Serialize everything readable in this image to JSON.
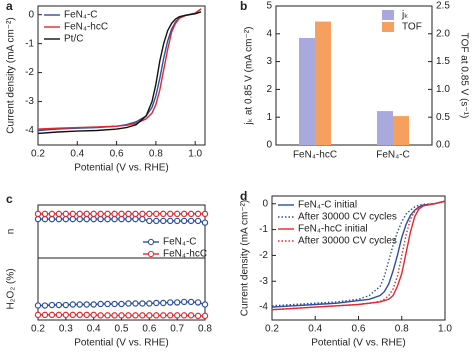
{
  "chart_data": [
    {
      "type": "line",
      "panel_label": "a",
      "x_label": "Potential (V vs. RHE)",
      "y_label": "Current density (mA cm⁻²)",
      "x": [
        0.2,
        0.3,
        0.4,
        0.5,
        0.6,
        0.65,
        0.7,
        0.75,
        0.78,
        0.8,
        0.82,
        0.84,
        0.86,
        0.88,
        0.9,
        0.92,
        0.95,
        1.0,
        1.03
      ],
      "series": [
        {
          "name": "FeN₄-C",
          "color": "#2b4fa0",
          "values": [
            -4.0,
            -3.95,
            -3.92,
            -3.9,
            -3.85,
            -3.8,
            -3.7,
            -3.5,
            -3.2,
            -2.8,
            -2.2,
            -1.5,
            -0.9,
            -0.5,
            -0.25,
            -0.1,
            -0.02,
            0.05,
            0.2
          ]
        },
        {
          "name": "FeN₄-hcC",
          "color": "#e0282e",
          "values": [
            -3.95,
            -3.92,
            -3.9,
            -3.88,
            -3.85,
            -3.82,
            -3.75,
            -3.6,
            -3.4,
            -3.1,
            -2.6,
            -1.9,
            -1.2,
            -0.6,
            -0.3,
            -0.12,
            -0.03,
            0.05,
            0.2
          ]
        },
        {
          "name": "Pt/C",
          "color": "#111111",
          "values": [
            -4.1,
            -4.05,
            -4.02,
            -4.0,
            -3.95,
            -3.9,
            -3.8,
            -3.5,
            -3.0,
            -2.4,
            -1.6,
            -1.0,
            -0.55,
            -0.3,
            -0.15,
            -0.07,
            -0.02,
            0.03,
            0.1
          ]
        }
      ],
      "xlim": [
        0.2,
        1.05
      ],
      "xticks": [
        0.2,
        0.4,
        0.6,
        0.8,
        {
          "value": 1,
          "label": "1.0"
        }
      ],
      "ylim": [
        -4.5,
        0.3
      ],
      "yticks": [
        0,
        -1,
        -2,
        -3,
        -4
      ],
      "legend": "upper left"
    },
    {
      "type": "bar",
      "panel_label": "b",
      "y_label": "jₖ at 0.85 V (mA cm⁻²)",
      "y2_label": "TOF at 0.85 V (s⁻¹)",
      "categories": [
        "FeN₄-hcC",
        "FeN₄-C"
      ],
      "series": [
        {
          "name": "jₖ",
          "color": "#aaa9dd",
          "values": [
            3.85,
            1.22
          ]
        },
        {
          "name": "TOF",
          "color": "#f5a05e",
          "values": [
            2.22,
            0.52
          ],
          "axis": "y2"
        }
      ],
      "ylim": [
        0,
        5
      ],
      "yticks": [
        0,
        1,
        2,
        3,
        4,
        5
      ],
      "y2lim": [
        0,
        2.5
      ],
      "y2ticks": [
        {
          "value": 0,
          "label": "0.0"
        },
        0.5,
        {
          "value": 1,
          "label": "1.0"
        },
        1.5,
        {
          "value": 2,
          "label": "2.0"
        },
        2.5
      ],
      "legend": "upper right"
    },
    {
      "type": "line",
      "panel_label": "c",
      "markers": true,
      "y_label": "n",
      "x": [
        0.2,
        0.225,
        0.25,
        0.275,
        0.3,
        0.325,
        0.35,
        0.375,
        0.4,
        0.425,
        0.45,
        0.475,
        0.5,
        0.525,
        0.55,
        0.575,
        0.6,
        0.625,
        0.65,
        0.675,
        0.7,
        0.725,
        0.75,
        0.775,
        0.8
      ],
      "series": [
        {
          "name": "FeN₄-C",
          "color": "#2b4fa0",
          "values": [
            3.92,
            3.92,
            3.92,
            3.92,
            3.92,
            3.92,
            3.92,
            3.92,
            3.92,
            3.92,
            3.92,
            3.92,
            3.92,
            3.92,
            3.92,
            3.92,
            3.91,
            3.91,
            3.91,
            3.91,
            3.91,
            3.91,
            3.91,
            3.91,
            3.9
          ]
        },
        {
          "name": "FeN₄-hcC",
          "color": "#e0282e",
          "values": [
            3.95,
            3.95,
            3.95,
            3.95,
            3.95,
            3.95,
            3.95,
            3.95,
            3.95,
            3.95,
            3.95,
            3.95,
            3.95,
            3.95,
            3.95,
            3.95,
            3.95,
            3.95,
            3.95,
            3.95,
            3.95,
            3.95,
            3.95,
            3.95,
            3.95
          ]
        }
      ],
      "xlim": [
        0.2,
        0.8
      ],
      "ylim": [
        3.7,
        4.0
      ],
      "legend": "lower right"
    },
    {
      "type": "line",
      "markers": true,
      "x_label": "Potential (V vs. RHE)",
      "y_label": "H₂O₂ (%)",
      "x": [
        0.2,
        0.225,
        0.25,
        0.275,
        0.3,
        0.325,
        0.35,
        0.375,
        0.4,
        0.425,
        0.45,
        0.475,
        0.5,
        0.525,
        0.55,
        0.575,
        0.6,
        0.625,
        0.65,
        0.675,
        0.7,
        0.725,
        0.75,
        0.775,
        0.8
      ],
      "series": [
        {
          "color": "#2b4fa0",
          "values": [
            2.8,
            2.8,
            2.9,
            2.9,
            2.9,
            3.0,
            3.0,
            3.0,
            3.0,
            3.1,
            3.1,
            3.1,
            3.1,
            3.2,
            3.2,
            3.2,
            3.2,
            3.3,
            3.3,
            3.4,
            3.4,
            3.5,
            3.5,
            3.4,
            3.0
          ]
        },
        {
          "color": "#e0282e",
          "values": [
            1.0,
            1.0,
            1.0,
            1.0,
            1.0,
            1.0,
            1.0,
            1.0,
            1.0,
            0.9,
            0.9,
            0.9,
            0.9,
            0.9,
            0.9,
            0.9,
            0.9,
            0.9,
            0.9,
            0.9,
            0.9,
            0.9,
            0.9,
            0.8,
            0.8
          ]
        }
      ],
      "xlim": [
        0.2,
        0.8
      ],
      "xticks": [
        0.2,
        0.3,
        0.4,
        0.5,
        0.6,
        0.7,
        0.8
      ],
      "ylim": [
        0,
        12
      ]
    },
    {
      "type": "line",
      "panel_label": "d",
      "x_label": "Potential (V vs. RHE)",
      "y_label": "Current density (mA cm⁻²)",
      "x": [
        0.2,
        0.3,
        0.4,
        0.5,
        0.6,
        0.65,
        0.7,
        0.72,
        0.74,
        0.76,
        0.78,
        0.8,
        0.82,
        0.84,
        0.86,
        0.88,
        0.9,
        0.95,
        1.0
      ],
      "series": [
        {
          "name": "FeN₄-C initial",
          "color": "#2b4fa0",
          "values": [
            -4.0,
            -3.95,
            -3.9,
            -3.85,
            -3.75,
            -3.7,
            -3.55,
            -3.4,
            -3.1,
            -2.6,
            -2.0,
            -1.3,
            -0.8,
            -0.45,
            -0.25,
            -0.12,
            -0.05,
            0.0,
            0.1
          ]
        },
        {
          "name": "After 30000 CV cycles",
          "color": "#2b4fa0",
          "dash": "dotted",
          "values": [
            -3.95,
            -3.9,
            -3.85,
            -3.8,
            -3.7,
            -3.55,
            -3.2,
            -2.8,
            -2.2,
            -1.6,
            -1.1,
            -0.7,
            -0.4,
            -0.25,
            -0.12,
            -0.06,
            -0.02,
            0.0,
            0.1
          ]
        },
        {
          "name": "FeN₄-hcC initial",
          "color": "#e0282e",
          "values": [
            -4.1,
            -4.05,
            -4.0,
            -3.95,
            -3.9,
            -3.85,
            -3.8,
            -3.75,
            -3.7,
            -3.55,
            -3.2,
            -2.7,
            -1.9,
            -1.1,
            -0.5,
            -0.2,
            -0.08,
            0.0,
            0.1
          ]
        },
        {
          "name": "After 30000 CV cycles",
          "color": "#e0282e",
          "dash": "dotted",
          "values": [
            -4.1,
            -4.05,
            -4.0,
            -3.95,
            -3.9,
            -3.85,
            -3.78,
            -3.7,
            -3.55,
            -3.3,
            -2.8,
            -2.0,
            -1.2,
            -0.6,
            -0.3,
            -0.12,
            -0.05,
            0.0,
            0.1
          ]
        }
      ],
      "xlim": [
        0.2,
        1.0
      ],
      "xticks": [
        0.2,
        0.4,
        0.6,
        0.8,
        {
          "value": 1,
          "label": "1.0"
        }
      ],
      "ylim": [
        -4.5,
        0.3
      ],
      "yticks": [
        0,
        -1,
        -2,
        -3,
        -4
      ],
      "legend": "upper left"
    }
  ]
}
